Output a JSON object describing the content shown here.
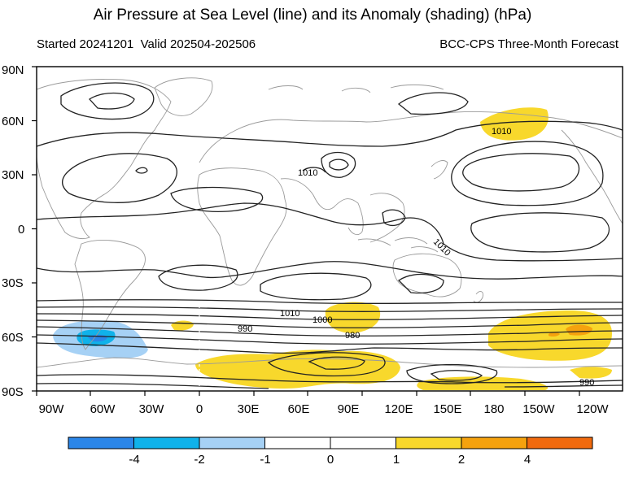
{
  "title": "Air Pressure at Sea Level (line) and its Anomaly (shading) (hPa)",
  "started": "Started 20241201",
  "valid": "Valid 202504-202506",
  "source": "BCC-CPS Three-Month Forecast",
  "lat_labels": [
    "90N",
    "60N",
    "30N",
    "0",
    "30S",
    "60S",
    "90S"
  ],
  "lon_labels": [
    "90W",
    "60W",
    "30W",
    "0",
    "30E",
    "60E",
    "90E",
    "120E",
    "150E",
    "180",
    "150W",
    "120W"
  ],
  "contour_labels": [
    "1010",
    "1010",
    "1010",
    "1010",
    "1000",
    "990",
    "980",
    "990"
  ],
  "colorbar": {
    "labels": [
      "-4",
      "-2",
      "-1",
      "0",
      "1",
      "2",
      "4"
    ],
    "colors": [
      "#2b86e8",
      "#10b2ea",
      "#a6d1f5",
      "#ffffff",
      "#ffffff",
      "#f8d82c",
      "#f5a20e",
      "#f06a0e"
    ]
  }
}
